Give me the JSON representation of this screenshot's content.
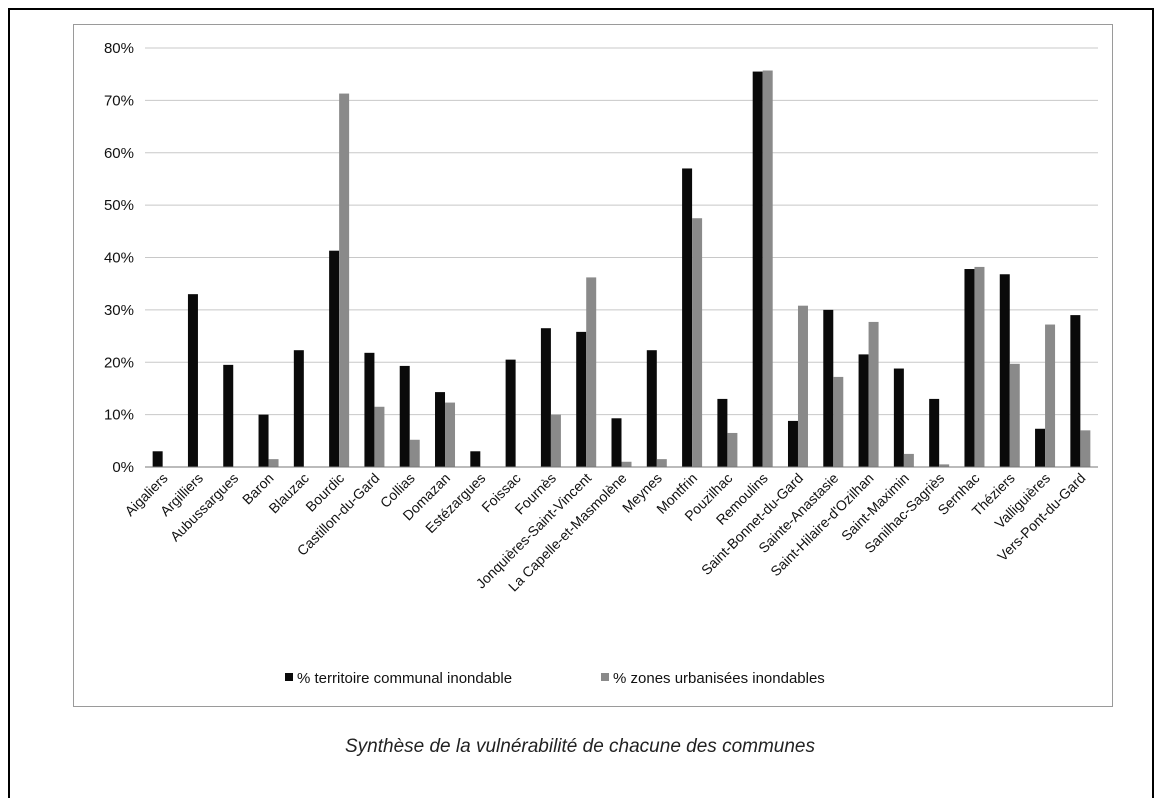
{
  "caption": "Synthèse de la vulnérabilité de chacune des communes",
  "colors": {
    "series1": "#0a0a0a",
    "series2": "#8a8a8a",
    "grid": "#c8c8c8"
  },
  "chart_data": {
    "type": "bar",
    "title": "",
    "xlabel": "",
    "ylabel": "",
    "ylim": [
      0,
      80
    ],
    "yticks": [
      "0%",
      "10%",
      "20%",
      "30%",
      "40%",
      "50%",
      "60%",
      "70%",
      "80%"
    ],
    "grid": true,
    "legend_position": "bottom",
    "categories": [
      "Aigaliers",
      "Argilliers",
      "Aubussargues",
      "Baron",
      "Blauzac",
      "Bourdic",
      "Castillon-du-Gard",
      "Collias",
      "Domazan",
      "Estézargues",
      "Foissac",
      "Fournès",
      "Jonquières-Saint-Vincent",
      "La Capelle-et-Masmolène",
      "Meynes",
      "Montfrin",
      "Pouzilhac",
      "Remoulins",
      "Saint-Bonnet-du-Gard",
      "Sainte-Anastasie",
      "Saint-Hilaire-d'Ozilhan",
      "Saint-Maximin",
      "Sanilhac-Sagriès",
      "Sernhac",
      "Théziers",
      "Valliguières",
      "Vers-Pont-du-Gard"
    ],
    "series": [
      {
        "name": "% territoire communal inondable",
        "values": [
          3,
          33,
          19.5,
          10,
          22.3,
          41.3,
          21.8,
          19.3,
          14.3,
          3,
          20.5,
          26.5,
          25.8,
          9.3,
          22.3,
          57,
          13,
          75.5,
          8.8,
          30,
          21.5,
          18.8,
          13,
          37.8,
          36.8,
          7.3,
          29
        ]
      },
      {
        "name": "% zones urbanisées inondables",
        "values": [
          0,
          0,
          0,
          1.5,
          0,
          71.3,
          11.5,
          5.2,
          12.3,
          0,
          0,
          10,
          36.2,
          1,
          1.5,
          47.5,
          6.5,
          75.7,
          30.8,
          17.2,
          27.7,
          2.5,
          0.5,
          38.2,
          19.7,
          27.2,
          7
        ]
      }
    ]
  }
}
